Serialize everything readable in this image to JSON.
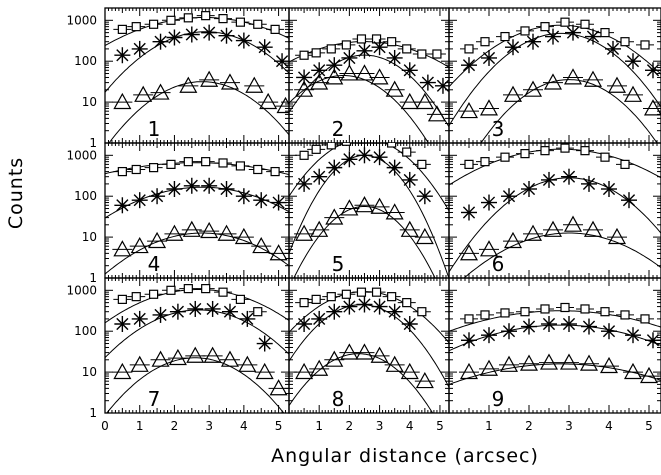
{
  "chart_data": {
    "type": "scatter",
    "xlabel": "Angular distance (arcsec)",
    "ylabel": "Counts",
    "xlim": [
      0,
      5.3
    ],
    "ylim": [
      1,
      2000
    ],
    "y_scale": "log",
    "grid": false,
    "x_ticks": [
      "0",
      "1",
      "2",
      "3",
      "4",
      "5"
    ],
    "y_ticks": [
      "1",
      "10",
      "100",
      "1000"
    ],
    "series_markers": [
      "square",
      "asterisk",
      "triangle"
    ],
    "panels": [
      {
        "label": "1",
        "squares": [
          [
            0.5,
            600
          ],
          [
            0.9,
            700
          ],
          [
            1.4,
            800
          ],
          [
            1.9,
            1000
          ],
          [
            2.4,
            1150
          ],
          [
            2.9,
            1300
          ],
          [
            3.4,
            1100
          ],
          [
            3.9,
            900
          ],
          [
            4.4,
            800
          ],
          [
            4.9,
            600
          ]
        ],
        "asterisks": [
          [
            0.5,
            140
          ],
          [
            1.0,
            200
          ],
          [
            1.6,
            300
          ],
          [
            2.0,
            380
          ],
          [
            2.5,
            450
          ],
          [
            3.0,
            500
          ],
          [
            3.5,
            420
          ],
          [
            4.0,
            320
          ],
          [
            4.6,
            220
          ],
          [
            5.1,
            100
          ]
        ],
        "triangles": [
          [
            0.5,
            10
          ],
          [
            1.1,
            15
          ],
          [
            1.6,
            17
          ],
          [
            2.4,
            25
          ],
          [
            3.0,
            35
          ],
          [
            3.6,
            30
          ],
          [
            4.3,
            25
          ],
          [
            4.7,
            10
          ],
          [
            5.2,
            8
          ]
        ],
        "fits": [
          {
            "a": 3.07,
            "b": 2.85,
            "c": 0.053
          },
          {
            "a": 2.72,
            "b": 2.9,
            "c": 0.11
          },
          {
            "a": 1.5,
            "b": 2.8,
            "c": 0.13
          }
        ]
      },
      {
        "label": "2",
        "squares": [
          [
            0.5,
            140
          ],
          [
            0.9,
            160
          ],
          [
            1.4,
            200
          ],
          [
            1.9,
            250
          ],
          [
            2.4,
            350
          ],
          [
            2.9,
            350
          ],
          [
            3.4,
            300
          ],
          [
            3.9,
            200
          ],
          [
            4.4,
            150
          ],
          [
            4.9,
            150
          ]
        ],
        "asterisks": [
          [
            0.5,
            40
          ],
          [
            1.0,
            60
          ],
          [
            1.5,
            80
          ],
          [
            2.0,
            120
          ],
          [
            2.5,
            180
          ],
          [
            3.0,
            220
          ],
          [
            3.5,
            120
          ],
          [
            4.0,
            60
          ],
          [
            4.6,
            30
          ],
          [
            5.1,
            25
          ]
        ],
        "triangles": [
          [
            0.5,
            20
          ],
          [
            1.0,
            30
          ],
          [
            1.5,
            40
          ],
          [
            2.0,
            50
          ],
          [
            2.5,
            50
          ],
          [
            3.0,
            40
          ],
          [
            3.5,
            20
          ],
          [
            4.0,
            10
          ],
          [
            4.5,
            10
          ],
          [
            4.9,
            5
          ]
        ],
        "fits": [
          {
            "a": 2.48,
            "b": 2.5,
            "c": 0.05
          },
          {
            "a": 2.15,
            "b": 2.5,
            "c": 0.14
          },
          {
            "a": 1.65,
            "b": 1.8,
            "c": 0.13
          }
        ]
      },
      {
        "label": "3",
        "squares": [
          [
            0.5,
            200
          ],
          [
            0.9,
            300
          ],
          [
            1.4,
            400
          ],
          [
            1.9,
            550
          ],
          [
            2.4,
            700
          ],
          [
            2.9,
            900
          ],
          [
            3.4,
            800
          ],
          [
            3.9,
            500
          ],
          [
            4.4,
            300
          ],
          [
            4.9,
            250
          ]
        ],
        "asterisks": [
          [
            0.5,
            80
          ],
          [
            1.0,
            120
          ],
          [
            1.6,
            220
          ],
          [
            2.1,
            300
          ],
          [
            2.6,
            400
          ],
          [
            3.1,
            500
          ],
          [
            3.6,
            400
          ],
          [
            4.1,
            200
          ],
          [
            4.6,
            100
          ],
          [
            5.1,
            60
          ]
        ],
        "triangles": [
          [
            0.5,
            6
          ],
          [
            1.0,
            7
          ],
          [
            1.6,
            15
          ],
          [
            2.1,
            20
          ],
          [
            2.6,
            30
          ],
          [
            3.1,
            40
          ],
          [
            3.6,
            35
          ],
          [
            4.2,
            25
          ],
          [
            4.6,
            15
          ],
          [
            5.1,
            7
          ]
        ],
        "fits": [
          {
            "a": 2.88,
            "b": 2.8,
            "c": 0.12
          },
          {
            "a": 2.68,
            "b": 2.8,
            "c": 0.18
          },
          {
            "a": 1.55,
            "b": 3.0,
            "c": 0.2
          }
        ]
      },
      {
        "label": "4",
        "squares": [
          [
            0.5,
            400
          ],
          [
            0.9,
            450
          ],
          [
            1.4,
            500
          ],
          [
            1.9,
            600
          ],
          [
            2.4,
            700
          ],
          [
            2.9,
            700
          ],
          [
            3.4,
            650
          ],
          [
            3.9,
            550
          ],
          [
            4.4,
            450
          ],
          [
            4.9,
            400
          ]
        ],
        "asterisks": [
          [
            0.5,
            60
          ],
          [
            1.0,
            80
          ],
          [
            1.5,
            100
          ],
          [
            2.0,
            150
          ],
          [
            2.5,
            180
          ],
          [
            3.0,
            180
          ],
          [
            3.5,
            150
          ],
          [
            4.0,
            100
          ],
          [
            4.5,
            80
          ],
          [
            5.0,
            70
          ]
        ],
        "triangles": [
          [
            0.5,
            5
          ],
          [
            1.0,
            6
          ],
          [
            1.5,
            8
          ],
          [
            2.0,
            12
          ],
          [
            2.5,
            15
          ],
          [
            3.0,
            14
          ],
          [
            3.5,
            12
          ],
          [
            4.0,
            10
          ],
          [
            4.5,
            6
          ],
          [
            5.0,
            4
          ]
        ],
        "fits": [
          {
            "a": 2.82,
            "b": 2.6,
            "c": 0.025
          },
          {
            "a": 2.22,
            "b": 2.8,
            "c": 0.06
          },
          {
            "a": 1.1,
            "b": 2.8,
            "c": 0.08
          }
        ]
      },
      {
        "label": "5",
        "squares": [
          [
            0.5,
            1000
          ],
          [
            0.9,
            1400
          ],
          [
            1.4,
            1800
          ],
          [
            1.9,
            2200
          ],
          [
            2.4,
            2500
          ],
          [
            2.9,
            2500
          ],
          [
            3.4,
            2000
          ],
          [
            3.9,
            1200
          ],
          [
            4.4,
            600
          ]
        ],
        "asterisks": [
          [
            0.5,
            200
          ],
          [
            1.0,
            300
          ],
          [
            1.5,
            500
          ],
          [
            2.0,
            800
          ],
          [
            2.5,
            1000
          ],
          [
            3.0,
            900
          ],
          [
            3.5,
            500
          ],
          [
            4.0,
            250
          ],
          [
            4.5,
            100
          ]
        ],
        "triangles": [
          [
            0.5,
            12
          ],
          [
            1.0,
            15
          ],
          [
            1.5,
            30
          ],
          [
            2.0,
            50
          ],
          [
            2.5,
            60
          ],
          [
            3.0,
            55
          ],
          [
            3.5,
            40
          ],
          [
            4.0,
            15
          ],
          [
            4.5,
            10
          ]
        ],
        "fits": [
          {
            "a": 3.4,
            "b": 2.5,
            "c": 0.14
          },
          {
            "a": 3.0,
            "b": 2.5,
            "c": 0.24
          },
          {
            "a": 1.75,
            "b": 2.5,
            "c": 0.2
          }
        ]
      },
      {
        "label": "6",
        "squares": [
          [
            0.5,
            600
          ],
          [
            0.9,
            700
          ],
          [
            1.4,
            900
          ],
          [
            1.9,
            1100
          ],
          [
            2.4,
            1300
          ],
          [
            2.9,
            1500
          ],
          [
            3.4,
            1300
          ],
          [
            3.9,
            900
          ],
          [
            4.4,
            600
          ]
        ],
        "asterisks": [
          [
            0.5,
            40
          ],
          [
            1.0,
            70
          ],
          [
            1.5,
            100
          ],
          [
            2.0,
            150
          ],
          [
            2.5,
            250
          ],
          [
            3.0,
            300
          ],
          [
            3.5,
            200
          ],
          [
            4.0,
            150
          ],
          [
            4.5,
            80
          ]
        ],
        "triangles": [
          [
            0.5,
            4
          ],
          [
            1.0,
            5
          ],
          [
            1.6,
            8
          ],
          [
            2.1,
            12
          ],
          [
            2.6,
            15
          ],
          [
            3.1,
            20
          ],
          [
            3.6,
            15
          ],
          [
            4.2,
            10
          ]
        ],
        "fits": [
          {
            "a": 3.15,
            "b": 2.8,
            "c": 0.07
          },
          {
            "a": 2.45,
            "b": 3.0,
            "c": 0.16
          },
          {
            "a": 1.1,
            "b": 3.0,
            "c": 0.1
          }
        ]
      },
      {
        "label": "7",
        "squares": [
          [
            0.5,
            600
          ],
          [
            0.9,
            700
          ],
          [
            1.4,
            800
          ],
          [
            1.9,
            1000
          ],
          [
            2.4,
            1100
          ],
          [
            2.9,
            1100
          ],
          [
            3.4,
            900
          ],
          [
            3.9,
            600
          ],
          [
            4.4,
            300
          ]
        ],
        "asterisks": [
          [
            0.5,
            150
          ],
          [
            1.0,
            200
          ],
          [
            1.6,
            250
          ],
          [
            2.1,
            300
          ],
          [
            2.6,
            350
          ],
          [
            3.1,
            350
          ],
          [
            3.6,
            300
          ],
          [
            4.1,
            200
          ],
          [
            4.6,
            50
          ]
        ],
        "triangles": [
          [
            0.5,
            10
          ],
          [
            1.0,
            15
          ],
          [
            1.6,
            20
          ],
          [
            2.1,
            22
          ],
          [
            2.6,
            25
          ],
          [
            3.1,
            25
          ],
          [
            3.6,
            20
          ],
          [
            4.1,
            15
          ],
          [
            4.6,
            10
          ],
          [
            5.0,
            4
          ]
        ],
        "fits": [
          {
            "a": 3.02,
            "b": 2.7,
            "c": 0.07
          },
          {
            "a": 2.52,
            "b": 2.7,
            "c": 0.1
          },
          {
            "a": 1.35,
            "b": 2.6,
            "c": 0.13
          }
        ]
      },
      {
        "label": "8",
        "squares": [
          [
            0.5,
            500
          ],
          [
            0.9,
            600
          ],
          [
            1.4,
            700
          ],
          [
            1.9,
            800
          ],
          [
            2.4,
            900
          ],
          [
            2.9,
            900
          ],
          [
            3.4,
            700
          ],
          [
            3.9,
            500
          ],
          [
            4.4,
            300
          ]
        ],
        "asterisks": [
          [
            0.5,
            150
          ],
          [
            1.0,
            200
          ],
          [
            1.5,
            300
          ],
          [
            2.0,
            400
          ],
          [
            2.5,
            450
          ],
          [
            3.0,
            400
          ],
          [
            3.5,
            300
          ],
          [
            4.0,
            150
          ]
        ],
        "triangles": [
          [
            0.5,
            10
          ],
          [
            1.0,
            12
          ],
          [
            1.5,
            20
          ],
          [
            2.0,
            30
          ],
          [
            2.5,
            30
          ],
          [
            3.0,
            25
          ],
          [
            3.5,
            15
          ],
          [
            4.0,
            10
          ],
          [
            4.5,
            6
          ]
        ],
        "fits": [
          {
            "a": 2.97,
            "b": 2.5,
            "c": 0.1
          },
          {
            "a": 2.65,
            "b": 2.4,
            "c": 0.15
          },
          {
            "a": 1.45,
            "b": 2.3,
            "c": 0.15
          }
        ]
      },
      {
        "label": "9",
        "squares": [
          [
            0.5,
            200
          ],
          [
            0.9,
            250
          ],
          [
            1.4,
            280
          ],
          [
            1.9,
            300
          ],
          [
            2.4,
            350
          ],
          [
            2.9,
            380
          ],
          [
            3.4,
            350
          ],
          [
            3.9,
            300
          ],
          [
            4.4,
            250
          ],
          [
            4.9,
            200
          ]
        ],
        "asterisks": [
          [
            0.5,
            60
          ],
          [
            1.0,
            80
          ],
          [
            1.5,
            100
          ],
          [
            2.0,
            130
          ],
          [
            2.5,
            150
          ],
          [
            3.0,
            150
          ],
          [
            3.5,
            130
          ],
          [
            4.0,
            100
          ],
          [
            4.6,
            80
          ],
          [
            5.1,
            60
          ]
        ],
        "triangles": [
          [
            0.5,
            10
          ],
          [
            1.0,
            12
          ],
          [
            1.5,
            15
          ],
          [
            2.0,
            16
          ],
          [
            2.5,
            17
          ],
          [
            3.0,
            17
          ],
          [
            3.5,
            16
          ],
          [
            4.0,
            14
          ],
          [
            4.6,
            10
          ],
          [
            5.0,
            8
          ]
        ],
        "fits": [
          {
            "a": 2.5,
            "b": 2.8,
            "c": 0.04
          },
          {
            "a": 2.15,
            "b": 2.8,
            "c": 0.05
          },
          {
            "a": 1.2,
            "b": 2.8,
            "c": 0.04
          }
        ]
      }
    ]
  }
}
